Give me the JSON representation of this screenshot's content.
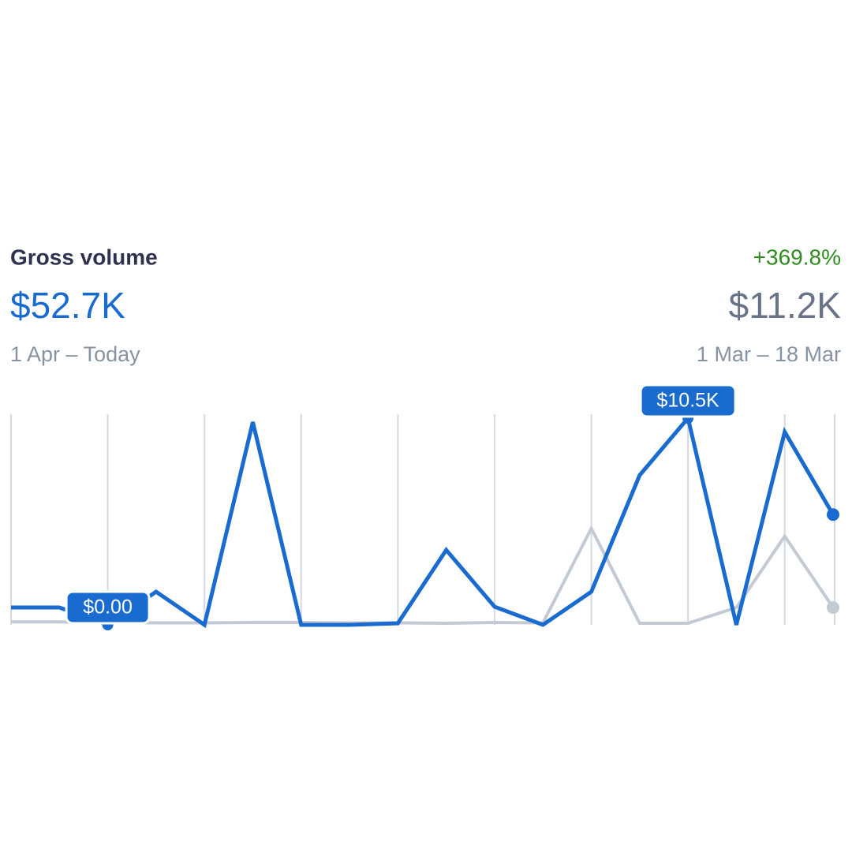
{
  "chart_data": {
    "type": "line",
    "title": "Gross volume",
    "value": "$52.7K",
    "period": "1 Apr – Today",
    "change": "+369.8%",
    "compare_value": "$11.2K",
    "compare_period": "1 Mar – 18 Mar",
    "ylim": [
      0,
      10500
    ],
    "grid": true,
    "series": [
      {
        "color": "#1a6bcf",
        "values": [
          880,
          880,
          0,
          1680,
          0,
          10300,
          0,
          0,
          80,
          3800,
          920,
          0,
          1680,
          7600,
          10500,
          0,
          9800,
          5600
        ],
        "value_labels": [
          null,
          null,
          "$0.00",
          null,
          null,
          null,
          null,
          null,
          null,
          null,
          null,
          null,
          null,
          null,
          "$10.5K",
          null,
          null,
          null
        ]
      },
      {
        "color": "#c4cad4",
        "values": [
          150,
          150,
          120,
          100,
          100,
          120,
          120,
          100,
          100,
          80,
          120,
          100,
          4900,
          80,
          80,
          880,
          4500,
          880
        ]
      }
    ]
  }
}
